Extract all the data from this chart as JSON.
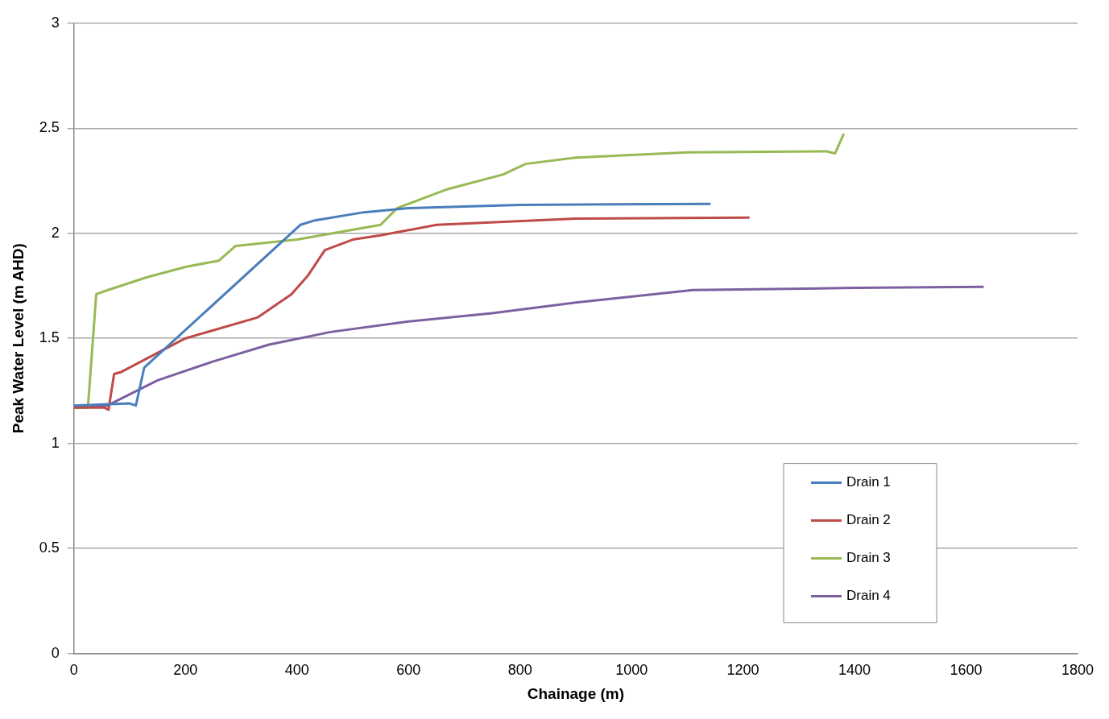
{
  "chart_data": {
    "type": "line",
    "xlabel": "Chainage (m)",
    "ylabel": "Peak Water Level (m AHD)",
    "xlim": [
      0,
      1800
    ],
    "xticks": [
      0,
      200,
      400,
      600,
      800,
      1000,
      1200,
      1400,
      1600,
      1800
    ],
    "ylim": [
      0,
      3
    ],
    "yticks": [
      0,
      0.5,
      1,
      1.5,
      2,
      2.5,
      3
    ],
    "grid": "y",
    "legend": "bottom right",
    "marker": "none",
    "line_style": "solid",
    "series": [
      {
        "name": "Drain 1",
        "color": "#4a7ebb",
        "x": [
          0,
          100,
          111,
          126,
          406,
          430,
          520,
          600,
          800,
          1140
        ],
        "values": [
          1.18,
          1.19,
          1.18,
          1.36,
          2.04,
          2.06,
          2.1,
          2.12,
          2.135,
          2.14
        ]
      },
      {
        "name": "Drain 2",
        "color": "#be4b48",
        "x": [
          0,
          55,
          62,
          72,
          85,
          200,
          330,
          390,
          420,
          450,
          500,
          550,
          650,
          900,
          1210
        ],
        "values": [
          1.17,
          1.17,
          1.16,
          1.33,
          1.34,
          1.5,
          1.6,
          1.71,
          1.8,
          1.92,
          1.97,
          1.99,
          2.04,
          2.07,
          2.075
        ]
      },
      {
        "name": "Drain 3",
        "color": "#98b954",
        "x": [
          0,
          25,
          40,
          50,
          130,
          200,
          260,
          290,
          400,
          550,
          580,
          670,
          770,
          810,
          900,
          1100,
          1350,
          1365,
          1380
        ],
        "values": [
          1.17,
          1.17,
          1.71,
          1.72,
          1.79,
          1.84,
          1.87,
          1.94,
          1.97,
          2.04,
          2.12,
          2.21,
          2.28,
          2.33,
          2.36,
          2.385,
          2.39,
          2.38,
          2.47
        ]
      },
      {
        "name": "Drain 4",
        "color": "#7d60a0",
        "x": [
          0,
          60,
          150,
          250,
          350,
          460,
          600,
          750,
          900,
          1110,
          1400,
          1630
        ],
        "values": [
          1.17,
          1.18,
          1.3,
          1.39,
          1.47,
          1.53,
          1.58,
          1.62,
          1.67,
          1.73,
          1.74,
          1.745
        ]
      }
    ]
  }
}
